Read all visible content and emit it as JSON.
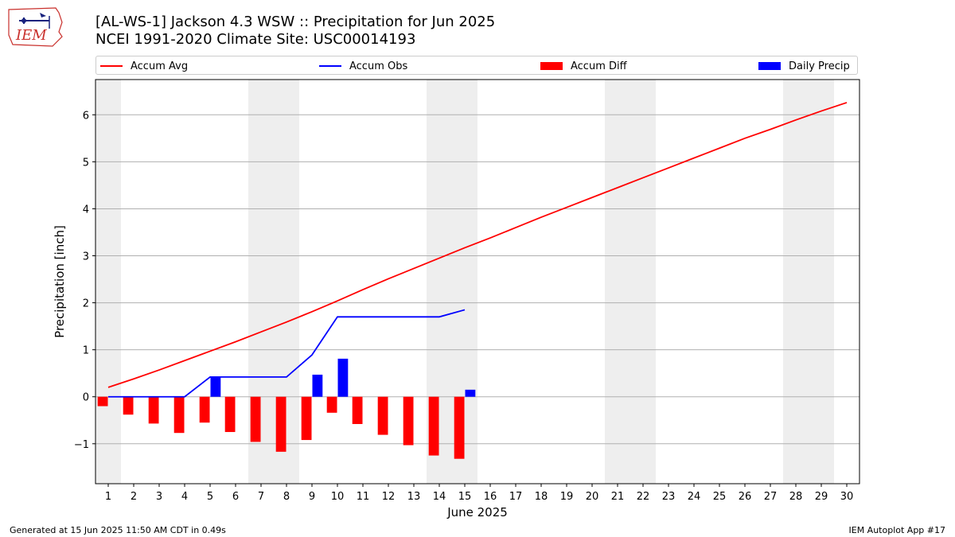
{
  "logo": {
    "text": "IEM"
  },
  "header": {
    "title_line1": "[AL-WS-1] Jackson 4.3 WSW :: Precipitation for Jun 2025",
    "title_line2": "NCEI 1991-2020 Climate Site: USC00014193"
  },
  "legend": [
    {
      "label": "Accum Avg",
      "kind": "line",
      "color": "#ff0000"
    },
    {
      "label": "Accum Obs",
      "kind": "line",
      "color": "#0000ff"
    },
    {
      "label": "Accum Diff",
      "kind": "bar",
      "color": "#ff0000"
    },
    {
      "label": "Daily Precip",
      "kind": "bar",
      "color": "#0000ff"
    }
  ],
  "footer": {
    "left": "Generated at 15 Jun 2025 11:50 AM CDT in 0.49s",
    "right": "IEM Autoplot App #17"
  },
  "chart_data": {
    "type": "bar",
    "xlabel": "June 2025",
    "ylabel": "Precipitation [inch]",
    "xlim": [
      0.5,
      30.5
    ],
    "ylim": [
      -1.85,
      6.75
    ],
    "yticks": [
      -1,
      0,
      1,
      2,
      3,
      4,
      5,
      6
    ],
    "ytick_labels": [
      "−1",
      "0",
      "1",
      "2",
      "3",
      "4",
      "5",
      "6"
    ],
    "x_days": [
      1,
      2,
      3,
      4,
      5,
      6,
      7,
      8,
      9,
      10,
      11,
      12,
      13,
      14,
      15,
      16,
      17,
      18,
      19,
      20,
      21,
      22,
      23,
      24,
      25,
      26,
      27,
      28,
      29,
      30
    ],
    "weekend_days": [
      1,
      7,
      8,
      14,
      15,
      21,
      22,
      28,
      29
    ],
    "grid": "horizontal",
    "legend_position": "top",
    "series": [
      {
        "name": "Accum Avg",
        "type": "line",
        "color": "#ff0000",
        "x": [
          1,
          2,
          3,
          4,
          5,
          6,
          7,
          8,
          9,
          10,
          11,
          12,
          13,
          14,
          15,
          16,
          17,
          18,
          19,
          20,
          21,
          22,
          23,
          24,
          25,
          26,
          27,
          28,
          29,
          30
        ],
        "values": [
          0.2,
          0.38,
          0.57,
          0.77,
          0.97,
          1.17,
          1.38,
          1.59,
          1.81,
          2.04,
          2.28,
          2.51,
          2.73,
          2.95,
          3.17,
          3.38,
          3.6,
          3.82,
          4.03,
          4.24,
          4.45,
          4.66,
          4.87,
          5.08,
          5.29,
          5.5,
          5.69,
          5.89,
          6.08,
          6.26
        ]
      },
      {
        "name": "Accum Obs",
        "type": "line",
        "color": "#0000ff",
        "x": [
          1,
          2,
          3,
          4,
          5,
          6,
          7,
          8,
          9,
          10,
          11,
          12,
          13,
          14,
          15
        ],
        "values": [
          0.0,
          0.0,
          0.0,
          0.0,
          0.42,
          0.42,
          0.42,
          0.42,
          0.89,
          1.7,
          1.7,
          1.7,
          1.7,
          1.7,
          1.85
        ]
      },
      {
        "name": "Accum Diff",
        "type": "bar",
        "color": "#ff0000",
        "x": [
          1,
          2,
          3,
          4,
          5,
          6,
          7,
          8,
          9,
          10,
          11,
          12,
          13,
          14,
          15
        ],
        "values": [
          -0.2,
          -0.38,
          -0.57,
          -0.77,
          -0.55,
          -0.75,
          -0.96,
          -1.17,
          -0.92,
          -0.34,
          -0.58,
          -0.81,
          -1.03,
          -1.25,
          -1.32
        ]
      },
      {
        "name": "Daily Precip",
        "type": "bar",
        "color": "#0000ff",
        "x": [
          1,
          2,
          3,
          4,
          5,
          6,
          7,
          8,
          9,
          10,
          11,
          12,
          13,
          14,
          15
        ],
        "values": [
          0,
          0,
          0,
          0,
          0.42,
          0,
          0,
          0,
          0.47,
          0.81,
          0,
          0,
          0,
          0,
          0.15
        ]
      }
    ]
  }
}
